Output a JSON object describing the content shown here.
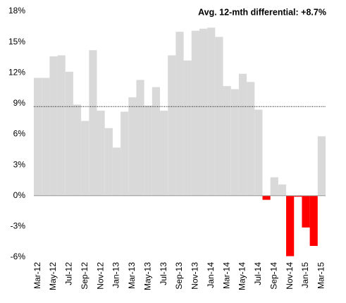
{
  "chart_data": {
    "type": "bar",
    "annotation": "Avg. 12-mth differential: +8.7%",
    "reference_line": 8.7,
    "categories": [
      "Mar-12",
      null,
      "May-12",
      null,
      "Jul-12",
      null,
      "Sep-12",
      null,
      "Nov-12",
      null,
      "Jan-13",
      null,
      "Mar-13",
      null,
      "May-13",
      null,
      "Jul-13",
      null,
      "Sep-13",
      null,
      "Nov-13",
      null,
      "Jan-14",
      null,
      "Mar-14",
      null,
      "May-14",
      null,
      "Jul-14",
      null,
      "Sep-14",
      null,
      "Nov-14",
      null,
      "Jan-15",
      null,
      "Mar-15"
    ],
    "values": [
      11.5,
      11.5,
      13.6,
      13.7,
      12.1,
      8.9,
      7.3,
      14.2,
      8.3,
      6.6,
      4.7,
      8.2,
      9.6,
      11.3,
      8.8,
      10.6,
      8.3,
      13.7,
      16.0,
      13.2,
      16.1,
      16.3,
      16.4,
      15.5,
      10.7,
      10.4,
      11.9,
      11.1,
      8.4,
      -0.4,
      1.8,
      1.1,
      -5.9,
      -0.1,
      -3.1,
      -4.9,
      5.8
    ],
    "color": "#d9d9d9",
    "negative_color": "#ff0000",
    "ylim": [
      -6,
      18
    ],
    "yticks": [
      {
        "value": -6,
        "label": "-6%"
      },
      {
        "value": -3,
        "label": "-3%"
      },
      {
        "value": 0,
        "label": "0%"
      },
      {
        "value": 3,
        "label": "3%"
      },
      {
        "value": 6,
        "label": "6%"
      },
      {
        "value": 9,
        "label": "9%"
      },
      {
        "value": 12,
        "label": "12%"
      },
      {
        "value": 15,
        "label": "15%"
      },
      {
        "value": 18,
        "label": "18%"
      }
    ],
    "grid": false
  }
}
